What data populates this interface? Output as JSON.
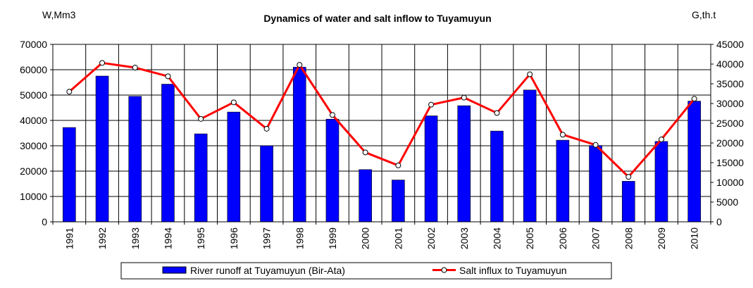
{
  "chart_data": {
    "type": "bar+line",
    "title": "Dynamics of water and salt inflow to Tuyamuyun",
    "ylabel_left": "W,Mm3",
    "ylabel_right": "G,th.t",
    "categories": [
      "1991",
      "1992",
      "1993",
      "1994",
      "1995",
      "1996",
      "1997",
      "1998",
      "1999",
      "2000",
      "2001",
      "2002",
      "2003",
      "2004",
      "2005",
      "2006",
      "2007",
      "2008",
      "2009",
      "2010"
    ],
    "y_left": {
      "min": 0,
      "max": 70000,
      "step": 10000,
      "ticks": [
        "0",
        "10000",
        "20000",
        "30000",
        "40000",
        "50000",
        "60000",
        "70000"
      ]
    },
    "y_right": {
      "min": 0,
      "max": 45000,
      "step": 5000,
      "ticks": [
        "0",
        "5000",
        "10000",
        "15000",
        "20000",
        "25000",
        "30000",
        "35000",
        "40000",
        "45000"
      ]
    },
    "grid": true,
    "legend_placement": "bottom",
    "series": [
      {
        "name": "River runoff at Tuyamuyun (Bir-Ata)",
        "type": "bar",
        "axis": "left",
        "color": "#0000ff",
        "values": [
          37200,
          57500,
          49500,
          54300,
          34700,
          43300,
          30000,
          61000,
          40500,
          20600,
          16500,
          41800,
          45800,
          35800,
          52000,
          32200,
          30100,
          16000,
          31700,
          47600
        ]
      },
      {
        "name": "Salt influx to Tuyamuyun",
        "type": "line",
        "axis": "right",
        "color": "#ff0000",
        "values": [
          33000,
          40300,
          39100,
          36900,
          26100,
          30300,
          23600,
          39800,
          27100,
          17600,
          14300,
          29700,
          31500,
          27600,
          37400,
          22100,
          19500,
          11400,
          20900,
          31200
        ]
      }
    ]
  }
}
